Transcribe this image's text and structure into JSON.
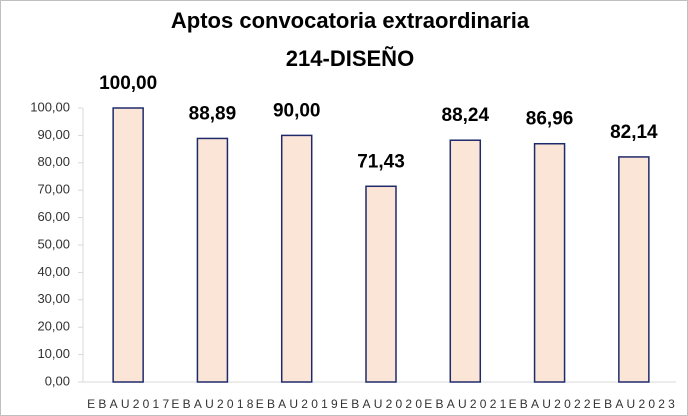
{
  "chart_data": {
    "type": "bar",
    "title": "Aptos convocatoria extraordinaria",
    "subtitle": "214-DISEÑO",
    "categories": [
      "EBAU2017",
      "EBAU2018",
      "EBAU2019",
      "EBAU2020",
      "EBAU2021",
      "EBAU2022",
      "EBAU2023"
    ],
    "values": [
      100,
      88.89,
      90,
      71.43,
      88.24,
      86.96,
      82.14
    ],
    "value_labels": [
      "100,00",
      "88,89",
      "90,00",
      "71,43",
      "88,24",
      "86,96",
      "82,14"
    ],
    "color": "#fbe5d6",
    "edge_color": "#1f2a6b",
    "ylim": [
      0,
      100
    ],
    "yticks": [
      {
        "value": 0,
        "label": "0,00"
      },
      {
        "value": 10,
        "label": "10,00"
      },
      {
        "value": 20,
        "label": "20,00"
      },
      {
        "value": 30,
        "label": "30,00"
      },
      {
        "value": 40,
        "label": "40,00"
      },
      {
        "value": 50,
        "label": "50,00"
      },
      {
        "value": 60,
        "label": "60,00"
      },
      {
        "value": 70,
        "label": "70,00"
      },
      {
        "value": 80,
        "label": "80,00"
      },
      {
        "value": 90,
        "label": "90,00"
      },
      {
        "value": 100,
        "label": "100,00"
      }
    ],
    "grid": false
  }
}
